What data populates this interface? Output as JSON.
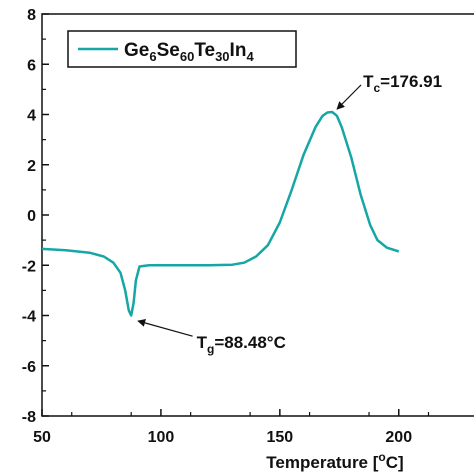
{
  "colors": {
    "series": "#16a6a6",
    "axis": "#111111"
  },
  "chart_data": {
    "type": "line",
    "xlabel": "Temperature [°C]",
    "xlabel_parts": {
      "main": "Temperature [",
      "sup": "o",
      "tail": "C]"
    },
    "ylabel": "",
    "xlim": [
      50,
      235
    ],
    "ylim": [
      -8,
      8
    ],
    "x_ticks": [
      50,
      100,
      150,
      200
    ],
    "y_ticks": [
      8,
      6,
      4,
      2,
      0,
      -2,
      -4,
      -6,
      -8
    ],
    "legend": {
      "placement": "top-left",
      "parts": [
        "Ge",
        "6",
        "Se",
        "60",
        "Te",
        "30",
        "In",
        "4"
      ]
    },
    "series": [
      {
        "name": "Ge6Se60Te30In4",
        "points": [
          [
            50,
            -1.35
          ],
          [
            60,
            -1.4
          ],
          [
            70,
            -1.5
          ],
          [
            76,
            -1.65
          ],
          [
            80,
            -1.9
          ],
          [
            83,
            -2.3
          ],
          [
            85,
            -3.0
          ],
          [
            86.5,
            -3.8
          ],
          [
            87.5,
            -4.0
          ],
          [
            88.5,
            -3.5
          ],
          [
            89.5,
            -2.6
          ],
          [
            91,
            -2.05
          ],
          [
            95,
            -2.0
          ],
          [
            100,
            -2.0
          ],
          [
            110,
            -2.0
          ],
          [
            120,
            -2.0
          ],
          [
            130,
            -1.98
          ],
          [
            135,
            -1.9
          ],
          [
            140,
            -1.65
          ],
          [
            145,
            -1.2
          ],
          [
            150,
            -0.3
          ],
          [
            155,
            1.0
          ],
          [
            160,
            2.4
          ],
          [
            165,
            3.5
          ],
          [
            168,
            3.95
          ],
          [
            170,
            4.08
          ],
          [
            172,
            4.1
          ],
          [
            174,
            3.95
          ],
          [
            176,
            3.5
          ],
          [
            180,
            2.3
          ],
          [
            184,
            0.8
          ],
          [
            188,
            -0.4
          ],
          [
            191,
            -1.0
          ],
          [
            195,
            -1.3
          ],
          [
            200,
            -1.45
          ]
        ]
      }
    ],
    "annotations": [
      {
        "id": "tc",
        "label_main": "T",
        "label_sub": "c",
        "label_value": "=176.91",
        "target": [
          172,
          4.1
        ],
        "text_at": [
          185,
          5.1
        ]
      },
      {
        "id": "tg",
        "label_main": "T",
        "label_sub": "g",
        "label_value": "=88.48°C",
        "target": [
          87.5,
          -4.1
        ],
        "text_at": [
          115,
          -5.3
        ]
      }
    ]
  }
}
